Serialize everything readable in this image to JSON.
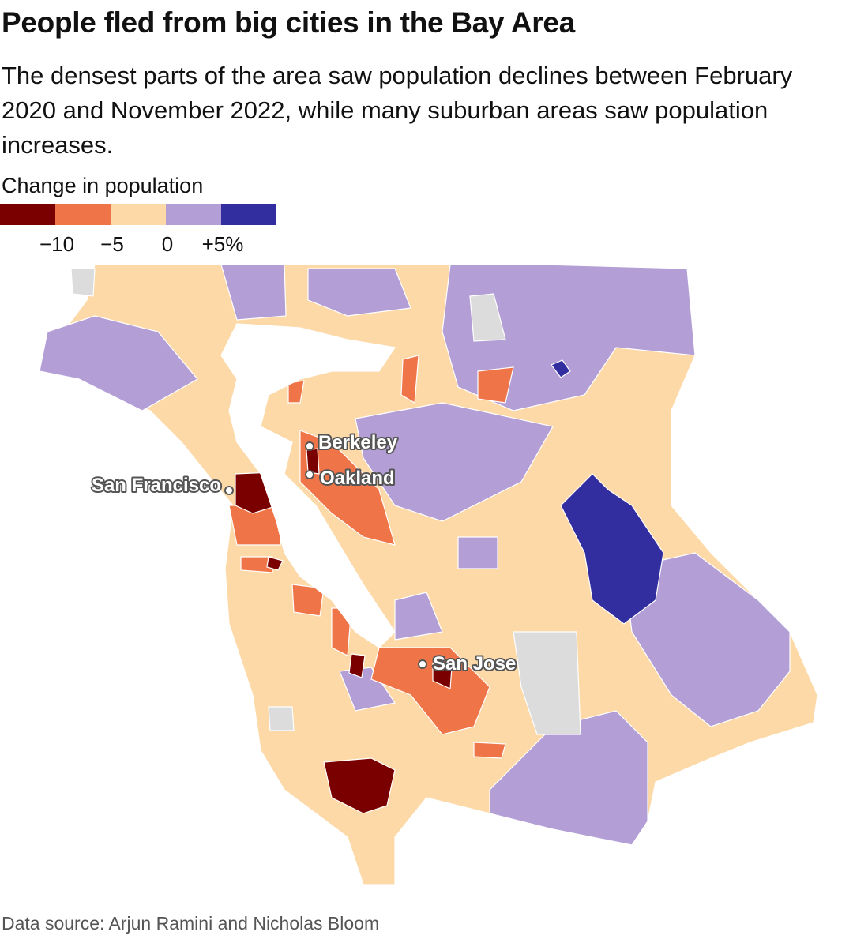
{
  "title": "People fled from big cities in the Bay Area",
  "subtitle": "The densest parts of the area saw population declines between February 2020 and November 2022, while many suburban areas saw population increases.",
  "legend": {
    "title": "Change in population",
    "colors": [
      "#7a0000",
      "#ef7549",
      "#fdd9a8",
      "#b39ed6",
      "#322ea0"
    ],
    "xlim": [
      -15,
      10
    ],
    "ticks": [
      {
        "value": -10,
        "label": "−10"
      },
      {
        "value": -5,
        "label": "−5"
      },
      0,
      {
        "value": 5,
        "label": "+5%"
      }
    ]
  },
  "cities": [
    "Berkeley",
    "Oakland",
    "San Francisco",
    "San Jose"
  ],
  "source": "Data source: Arjun Ramini and Nicholas Bloom"
}
